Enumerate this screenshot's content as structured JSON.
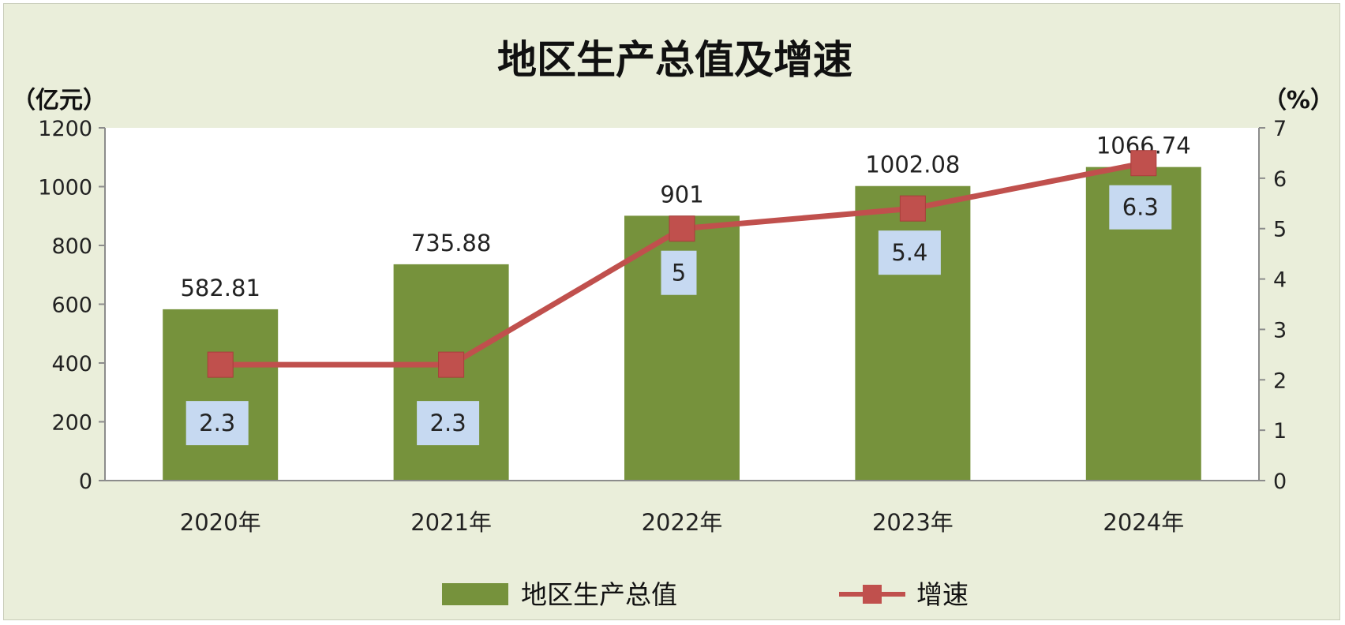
{
  "chart_data": {
    "type": "bar",
    "title": "地区生产总值及增速",
    "left_unit": "（亿元）",
    "right_unit": "（%）",
    "categories": [
      "2020年",
      "2021年",
      "2022年",
      "2023年",
      "2024年"
    ],
    "series": [
      {
        "name": "地区生产总值",
        "kind": "bar",
        "axis": "left",
        "values": [
          582.81,
          735.88,
          901,
          1002.08,
          1066.74
        ],
        "labels": [
          "582.81",
          "735.88",
          "901",
          "1002.08",
          "1066.74"
        ],
        "color": "#76923c"
      },
      {
        "name": "增速",
        "kind": "line",
        "axis": "right",
        "values": [
          2.3,
          2.3,
          5,
          5.4,
          6.3
        ],
        "labels": [
          "2.3",
          "2.3",
          "5",
          "5.4",
          "6.3"
        ],
        "color": "#c0504d"
      }
    ],
    "left_axis": {
      "min": 0,
      "max": 1200,
      "step": 200,
      "ticks": [
        "0",
        "200",
        "400",
        "600",
        "800",
        "1000",
        "1200"
      ]
    },
    "right_axis": {
      "min": 0,
      "max": 7,
      "step": 1,
      "ticks": [
        "0",
        "1",
        "2",
        "3",
        "4",
        "5",
        "6",
        "7"
      ]
    },
    "grid": false,
    "legend_position": "bottom",
    "colors": {
      "background": "#eaeeda",
      "plot_background": "#ffffff",
      "label_box": "#c6d9f1"
    }
  }
}
